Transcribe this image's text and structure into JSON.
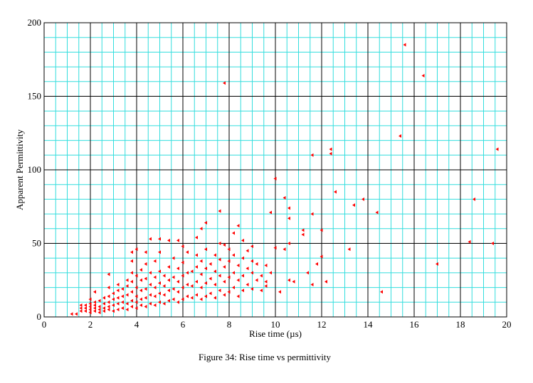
{
  "chart_data": {
    "type": "scatter",
    "xlabel": "Rise time (µs)",
    "ylabel": "Apparent Permittivity",
    "caption": "Figure 34: Rise time vs permittivity",
    "xlim": [
      0,
      20
    ],
    "ylim": [
      0,
      200
    ],
    "xticks": [
      0,
      2,
      4,
      6,
      8,
      10,
      12,
      14,
      16,
      18,
      20
    ],
    "yticks": [
      0,
      50,
      100,
      150,
      200
    ],
    "x_minor_ticks": [
      0.5,
      1,
      1.5,
      2.5,
      3,
      3.5,
      4.5,
      5,
      5.5,
      6.5,
      7,
      7.5,
      8.5,
      9,
      9.5,
      10.5,
      11,
      11.5,
      12.5,
      13,
      13.5,
      14.5,
      15,
      15.5,
      16.5,
      17,
      17.5,
      18.5,
      19,
      19.5
    ],
    "y_minor_ticks": [
      10,
      20,
      30,
      40,
      60,
      70,
      80,
      90,
      110,
      120,
      130,
      140,
      160,
      170,
      180,
      190
    ],
    "grid": true,
    "grid_color": "#33dede",
    "major_grid_color": "#000000",
    "series": [
      {
        "color": "#ff0000",
        "x": [
          1.2,
          1.4,
          1.6,
          1.6,
          1.6,
          1.8,
          1.8,
          1.8,
          2,
          2,
          2,
          2,
          2,
          2.2,
          2.2,
          2.2,
          2.2,
          2.2,
          2.4,
          2.4,
          2.4,
          2.4,
          2.6,
          2.6,
          2.6,
          2.6,
          2.8,
          2.8,
          2.8,
          2.8,
          2.8,
          2.8,
          3,
          3,
          3,
          3,
          3.2,
          3.2,
          3.2,
          3.2,
          3.2,
          3.4,
          3.4,
          3.4,
          3.4,
          3.6,
          3.6,
          3.6,
          3.6,
          3.6,
          3.8,
          3.8,
          3.8,
          3.8,
          3.8,
          3.8,
          3.8,
          4,
          4,
          4,
          4,
          4,
          4,
          4.2,
          4.2,
          4.2,
          4.2,
          4.2,
          4.4,
          4.4,
          4.4,
          4.4,
          4.4,
          4.4,
          4.6,
          4.6,
          4.6,
          4.6,
          4.6,
          4.8,
          4.8,
          4.8,
          4.8,
          4.8,
          5,
          5,
          5,
          5,
          5,
          5,
          5.2,
          5.2,
          5.2,
          5.2,
          5.4,
          5.4,
          5.4,
          5.4,
          5.4,
          5.6,
          5.6,
          5.6,
          5.6,
          5.8,
          5.8,
          5.8,
          5.8,
          5.8,
          6,
          6,
          6,
          6,
          6,
          6.2,
          6.2,
          6.2,
          6.2,
          6.4,
          6.4,
          6.4,
          6.6,
          6.6,
          6.6,
          6.6,
          6.6,
          6.8,
          6.8,
          6.8,
          6.8,
          6.8,
          7,
          7,
          7,
          7,
          7,
          7.2,
          7.2,
          7.2,
          7.4,
          7.4,
          7.4,
          7.4,
          7.6,
          7.6,
          7.6,
          7.6,
          7.6,
          7.8,
          7.8,
          7.8,
          7.8,
          7.8,
          8,
          8,
          8,
          8,
          8.2,
          8.2,
          8.2,
          8.2,
          8.4,
          8.4,
          8.4,
          8.4,
          8.6,
          8.6,
          8.6,
          8.6,
          8.8,
          8.8,
          8.8,
          9,
          9,
          9,
          9,
          9.2,
          9.2,
          9.4,
          9.4,
          9.6,
          9.6,
          9.6,
          9.8,
          9.8,
          10,
          10,
          10.2,
          10.4,
          10.4,
          10.6,
          10.6,
          10.6,
          10.6,
          10.8,
          11.2,
          11.2,
          11.4,
          11.6,
          11.6,
          11.6,
          11.8,
          12,
          12,
          12.2,
          12.4,
          12.4,
          12.6,
          13.2,
          13.4,
          13.8,
          14.4,
          14.6,
          15.4,
          15.6,
          16.4,
          17,
          18.4,
          18.6,
          19.4,
          19.6
        ],
        "values": [
          2,
          2,
          4,
          6,
          8,
          4,
          6,
          8,
          3,
          5,
          7,
          9,
          12,
          4,
          6,
          8,
          10,
          17,
          3,
          5,
          7,
          11,
          4,
          6,
          9,
          13,
          5,
          7,
          10,
          14,
          20,
          29,
          4,
          8,
          12,
          16,
          5,
          9,
          13,
          18,
          22,
          6,
          10,
          14,
          19,
          5,
          9,
          15,
          21,
          25,
          7,
          11,
          17,
          24,
          30,
          38,
          44,
          6,
          10,
          14,
          20,
          28,
          46,
          8,
          12,
          18,
          25,
          32,
          7,
          13,
          19,
          26,
          36,
          44,
          9,
          15,
          22,
          30,
          53,
          8,
          14,
          20,
          27,
          38,
          10,
          16,
          23,
          31,
          44,
          53,
          9,
          15,
          21,
          28,
          11,
          18,
          25,
          34,
          52,
          12,
          19,
          27,
          40,
          10,
          17,
          24,
          33,
          52,
          12,
          20,
          28,
          37,
          48,
          14,
          22,
          30,
          44,
          13,
          21,
          31,
          15,
          24,
          34,
          42,
          54,
          12,
          20,
          29,
          38,
          60,
          14,
          23,
          33,
          46,
          64,
          16,
          26,
          36,
          13,
          22,
          31,
          42,
          18,
          28,
          39,
          50,
          72,
          15,
          24,
          34,
          49,
          159,
          17,
          27,
          38,
          46,
          20,
          30,
          42,
          57,
          14,
          25,
          35,
          62,
          18,
          28,
          40,
          52,
          22,
          33,
          45,
          19,
          30,
          38,
          48,
          25,
          36,
          18,
          28,
          21,
          35,
          24,
          30,
          71,
          47,
          94,
          17,
          46,
          81,
          25,
          50,
          67,
          74,
          24,
          56,
          59,
          30,
          22,
          70,
          110,
          36,
          41,
          59,
          24,
          111,
          114,
          85,
          46,
          76,
          80,
          71,
          17,
          123,
          185,
          164,
          36,
          51,
          80,
          50,
          114
        ]
      }
    ]
  }
}
